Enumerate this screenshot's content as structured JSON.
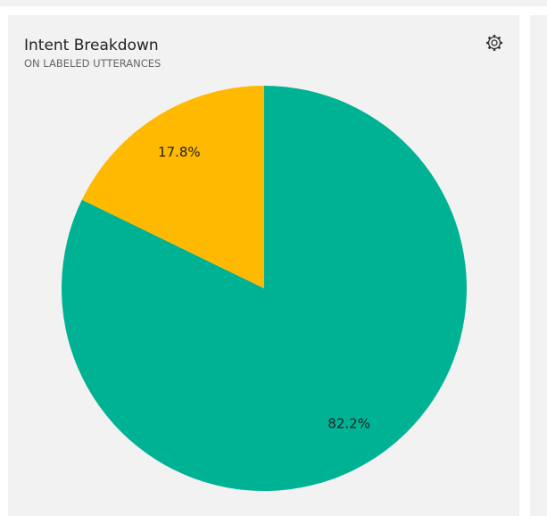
{
  "chart_data": {
    "type": "pie",
    "title": "Intent Breakdown",
    "subtitle": "ON LABELED UTTERANCES",
    "values": [
      82.2,
      17.8
    ],
    "value_labels": [
      "82.2%",
      "17.8%"
    ],
    "colors": [
      "#00b294",
      "#ffb900"
    ]
  }
}
